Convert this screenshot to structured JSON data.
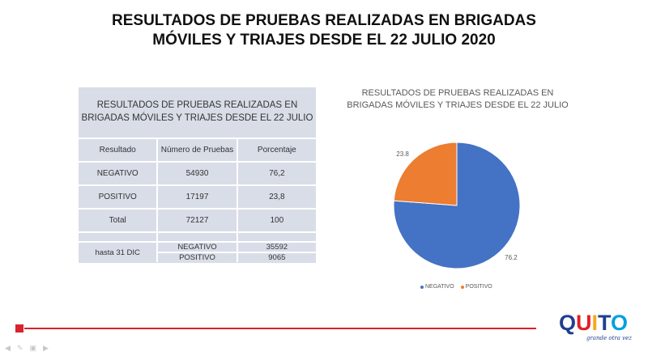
{
  "slide": {
    "title_line1": "RESULTADOS DE PRUEBAS REALIZADAS EN BRIGADAS",
    "title_line2": "MÓVILES Y TRIAJES DESDE EL 22 JULIO 2020"
  },
  "table": {
    "title_line1": "RESULTADOS  DE PRUEBAS REALIZADAS  EN",
    "title_line2": "BRIGADAS MÓVILES Y TRIAJES DESDE EL 22 JULIO",
    "headers": [
      "Resultado",
      "Número de Pruebas",
      "Porcentaje"
    ],
    "rows": [
      [
        "NEGATIVO",
        "54930",
        "76,2"
      ],
      [
        "POSITIVO",
        "17197",
        "23,8"
      ],
      [
        "Total",
        "72127",
        "100"
      ]
    ],
    "extra": {
      "label": "hasta 31 DIC",
      "rows": [
        [
          "NEGATIVO",
          "35592"
        ],
        [
          "POSITIVO",
          "9065"
        ]
      ]
    }
  },
  "chart_data": {
    "type": "pie",
    "title": "RESULTADOS DE PRUEBAS REALIZADAS EN BRIGADAS MÓVILES Y TRIAJES DESDE EL 22 JULIO",
    "categories": [
      "NEGATIVO",
      "POSITIVO"
    ],
    "values": [
      76.2,
      23.8
    ],
    "data_labels": [
      "76.2",
      "23.8"
    ],
    "colors": [
      "#4472c4",
      "#ed7d31"
    ],
    "legend_position": "bottom"
  },
  "logo": {
    "text": "QUITO",
    "tagline": "grande otra vez"
  },
  "colors": {
    "accent_red": "#d9232d",
    "table_bg": "#d9dde8"
  },
  "nav": {
    "icons": [
      "prev-arrow-icon",
      "pen-icon",
      "slides-icon",
      "next-arrow-icon"
    ]
  }
}
